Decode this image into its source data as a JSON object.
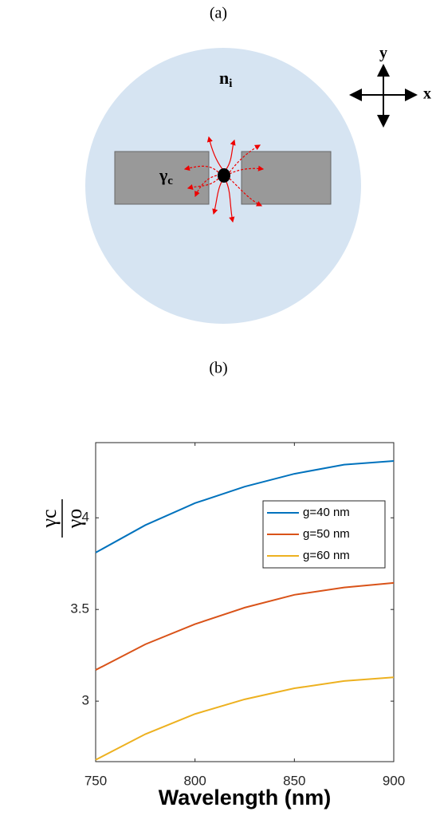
{
  "diagram": {
    "panel_label": "(a)",
    "medium": {
      "main": "n",
      "sub": "i"
    },
    "rate": {
      "main": "γ",
      "sub": "c"
    },
    "axis_x": "x",
    "axis_y": "y"
  },
  "chart_panel_label": "(b)",
  "chart_data": {
    "type": "line",
    "x": [
      750,
      775,
      800,
      825,
      850,
      875,
      900
    ],
    "series": [
      {
        "name": "g=40 nm",
        "color": "#0072bd",
        "values": [
          3.81,
          3.96,
          4.08,
          4.17,
          4.24,
          4.29,
          4.31
        ]
      },
      {
        "name": "g=50 nm",
        "color": "#d95319",
        "values": [
          3.17,
          3.31,
          3.42,
          3.51,
          3.58,
          3.62,
          3.645
        ]
      },
      {
        "name": "g=60 nm",
        "color": "#edb120",
        "values": [
          2.68,
          2.82,
          2.93,
          3.01,
          3.07,
          3.11,
          3.13
        ]
      }
    ],
    "xlim": [
      750,
      900
    ],
    "xticks": [
      750,
      800,
      850,
      900
    ],
    "ylim": [
      2.67,
      4.41
    ],
    "yticks": [
      3,
      3.5,
      4
    ],
    "xlabel": "Wavelength (nm)",
    "ylabel": {
      "numerator": "γc",
      "denominator": "γo"
    },
    "legend": "upper right"
  }
}
